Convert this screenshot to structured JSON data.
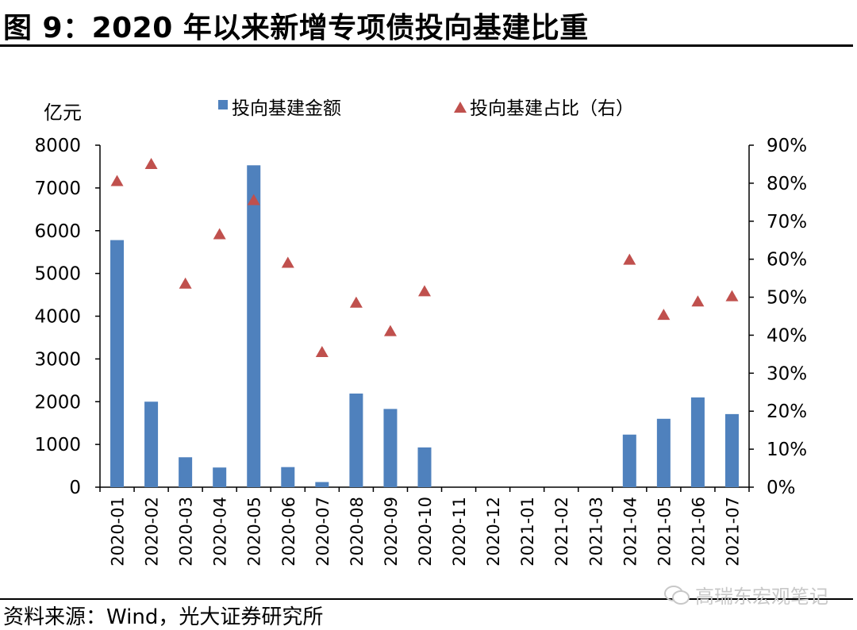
{
  "title": "图 9：2020 年以来新增专项债投向基建比重",
  "source": "资料来源：Wind，光大证券研究所",
  "watermark": "高瑞东宏观笔记",
  "chart_data": {
    "type": "bar",
    "categories": [
      "2020-01",
      "2020-02",
      "2020-03",
      "2020-04",
      "2020-05",
      "2020-06",
      "2020-07",
      "2020-08",
      "2020-09",
      "2020-10",
      "2020-11",
      "2020-12",
      "2021-01",
      "2021-02",
      "2021-03",
      "2021-04",
      "2021-05",
      "2021-06",
      "2021-07"
    ],
    "y_left_unit_label": "亿元",
    "y_left_range": [
      0,
      8000
    ],
    "y_left_ticks": [
      "0",
      "1000",
      "2000",
      "3000",
      "4000",
      "5000",
      "6000",
      "7000",
      "8000"
    ],
    "y_right_range": [
      0,
      90
    ],
    "y_right_ticks": [
      "0%",
      "10%",
      "20%",
      "30%",
      "40%",
      "50%",
      "60%",
      "70%",
      "80%",
      "90%"
    ],
    "series": [
      {
        "name": "投向基建金额",
        "kind": "bar",
        "axis": "left",
        "color": "#4F81BD",
        "values": [
          5780,
          2000,
          700,
          460,
          7530,
          470,
          120,
          2190,
          1830,
          930,
          null,
          null,
          null,
          null,
          null,
          1230,
          1600,
          2100,
          1710
        ]
      },
      {
        "name": "投向基建占比（右）",
        "kind": "marker",
        "marker": "triangle",
        "axis": "right",
        "color": "#C0504D",
        "values": [
          80.5,
          85,
          53.5,
          66.5,
          75.5,
          59,
          null,
          48.5,
          41,
          51.5,
          null,
          null,
          null,
          null,
          null,
          59.8,
          45.3,
          48.8,
          50.2
        ]
      }
    ],
    "extra_markers": [
      {
        "category": "2020-07",
        "series": "投向基建占比（右）",
        "value": 35.5
      }
    ],
    "legend_position": "top"
  }
}
